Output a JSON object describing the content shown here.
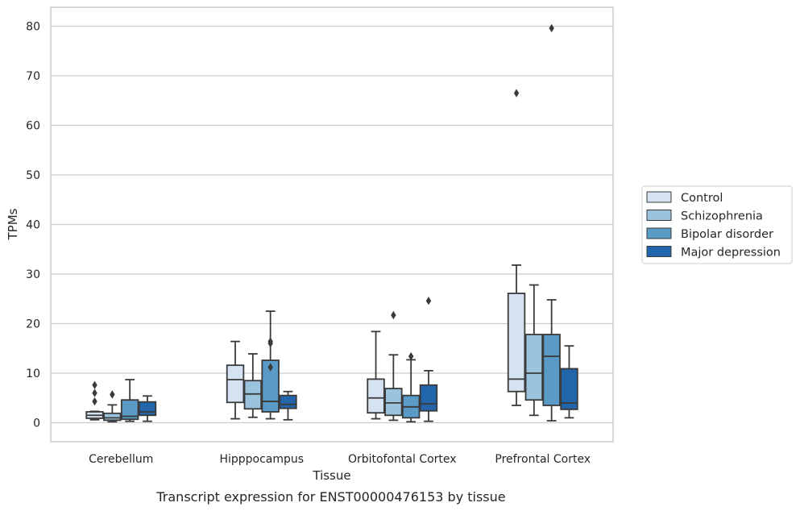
{
  "chart_data": {
    "type": "box",
    "title": "",
    "caption": "Transcript expression for ENST00000476153 by tissue",
    "xlabel": "Tissue",
    "ylabel": "TPMs",
    "ylim": [
      -3.8,
      84
    ],
    "yticks": [
      0,
      10,
      20,
      30,
      40,
      50,
      60,
      70,
      80
    ],
    "grid": true,
    "legend_position": "right",
    "categories": [
      "Cerebellum",
      "Hipppocampus",
      "Orbitofontal Cortex",
      "Prefrontal Cortex"
    ],
    "series": [
      {
        "name": "Control",
        "color": "#d4e2f1",
        "boxes": [
          {
            "whisker_low": 0.6,
            "q1": 0.9,
            "median": 1.5,
            "q3": 2.2,
            "whisker_high": 2.3,
            "outliers": [
              4.3,
              6.0,
              7.6
            ]
          },
          {
            "whisker_low": 0.8,
            "q1": 4.1,
            "median": 8.7,
            "q3": 11.6,
            "whisker_high": 16.4,
            "outliers": []
          },
          {
            "whisker_low": 0.8,
            "q1": 2.0,
            "median": 5.0,
            "q3": 8.8,
            "whisker_high": 18.4,
            "outliers": []
          },
          {
            "whisker_low": 3.5,
            "q1": 6.3,
            "median": 8.8,
            "q3": 26.1,
            "whisker_high": 31.8,
            "outliers": [
              66.5
            ]
          }
        ]
      },
      {
        "name": "Schizophrenia",
        "color": "#9cc3de",
        "boxes": [
          {
            "whisker_low": 0.2,
            "q1": 0.5,
            "median": 1.0,
            "q3": 1.9,
            "whisker_high": 3.6,
            "outliers": [
              5.7
            ]
          },
          {
            "whisker_low": 1.1,
            "q1": 2.8,
            "median": 5.8,
            "q3": 8.5,
            "whisker_high": 13.9,
            "outliers": []
          },
          {
            "whisker_low": 0.5,
            "q1": 1.5,
            "median": 4.0,
            "q3": 6.9,
            "whisker_high": 13.7,
            "outliers": [
              21.7
            ]
          },
          {
            "whisker_low": 1.5,
            "q1": 4.6,
            "median": 10.0,
            "q3": 17.8,
            "whisker_high": 27.8,
            "outliers": []
          }
        ]
      },
      {
        "name": "Bipolar disorder",
        "color": "#5a9ac7",
        "boxes": [
          {
            "whisker_low": 0.3,
            "q1": 0.7,
            "median": 1.3,
            "q3": 4.6,
            "whisker_high": 8.7,
            "outliers": []
          },
          {
            "whisker_low": 0.8,
            "q1": 2.2,
            "median": 4.3,
            "q3": 12.6,
            "whisker_high": 22.5,
            "outliers": [
              11.2,
              16.0,
              16.4
            ]
          },
          {
            "whisker_low": 0.2,
            "q1": 1.0,
            "median": 3.2,
            "q3": 5.5,
            "whisker_high": 12.7,
            "outliers": [
              13.4
            ]
          },
          {
            "whisker_low": 0.4,
            "q1": 3.5,
            "median": 13.4,
            "q3": 17.8,
            "whisker_high": 24.8,
            "outliers": [
              79.6
            ]
          }
        ]
      },
      {
        "name": "Major depression",
        "color": "#2365ab",
        "boxes": [
          {
            "whisker_low": 0.3,
            "q1": 1.5,
            "median": 2.2,
            "q3": 4.2,
            "whisker_high": 5.4,
            "outliers": []
          },
          {
            "whisker_low": 0.6,
            "q1": 2.9,
            "median": 3.7,
            "q3": 5.5,
            "whisker_high": 6.3,
            "outliers": []
          },
          {
            "whisker_low": 0.3,
            "q1": 2.4,
            "median": 3.8,
            "q3": 7.6,
            "whisker_high": 10.5,
            "outliers": [
              24.6
            ]
          },
          {
            "whisker_low": 1.0,
            "q1": 2.7,
            "median": 4.0,
            "q3": 10.9,
            "whisker_high": 15.5,
            "outliers": []
          }
        ]
      }
    ]
  }
}
